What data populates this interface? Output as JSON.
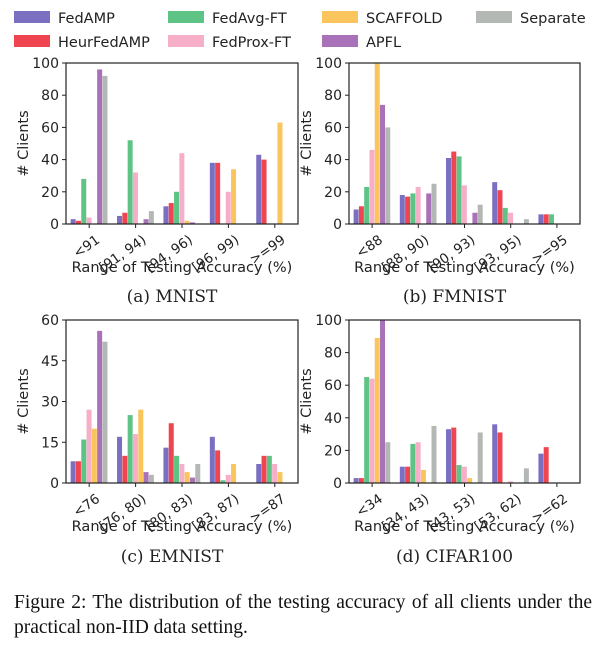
{
  "legend": [
    {
      "name": "FedAMP",
      "color": "#7a6fc1"
    },
    {
      "name": "HeurFedAMP",
      "color": "#ee4550"
    },
    {
      "name": "FedAvg-FT",
      "color": "#5ec486"
    },
    {
      "name": "FedProx-FT",
      "color": "#f7aec8"
    },
    {
      "name": "SCAFFOLD",
      "color": "#f9c55c"
    },
    {
      "name": "APFL",
      "color": "#a971b8"
    },
    {
      "name": "Separate",
      "color": "#b4b8b5"
    }
  ],
  "chart_data": [
    {
      "type": "bar",
      "title": "(a) MNIST",
      "xlabel": "Range of Testing Accuracy (%)",
      "ylabel": "# Clients",
      "categories": [
        "<91",
        "[91, 94)",
        "[94, 96)",
        "[96, 99)",
        ">=99"
      ],
      "ylim": [
        0,
        100
      ],
      "yticks": [
        0,
        20,
        40,
        60,
        80,
        100
      ],
      "series": [
        {
          "name": "FedAMP",
          "values": [
            3,
            5,
            11,
            38,
            43
          ]
        },
        {
          "name": "HeurFedAMP",
          "values": [
            2,
            7,
            13,
            38,
            40
          ]
        },
        {
          "name": "FedAvg-FT",
          "values": [
            28,
            52,
            20,
            0,
            0
          ]
        },
        {
          "name": "FedProx-FT",
          "values": [
            4,
            32,
            44,
            20,
            0
          ]
        },
        {
          "name": "SCAFFOLD",
          "values": [
            0,
            0,
            2,
            34,
            63
          ]
        },
        {
          "name": "APFL",
          "values": [
            96,
            3,
            1,
            0,
            0
          ]
        },
        {
          "name": "Separate",
          "values": [
            92,
            8,
            0,
            0,
            0
          ]
        }
      ]
    },
    {
      "type": "bar",
      "title": "(b) FMNIST",
      "xlabel": "Range of Testing Accuracy (%)",
      "ylabel": "# Clients",
      "categories": [
        "<88",
        "[88, 90)",
        "[90, 93)",
        "[93, 95)",
        ">=95"
      ],
      "ylim": [
        0,
        100
      ],
      "yticks": [
        0,
        20,
        40,
        60,
        80,
        100
      ],
      "series": [
        {
          "name": "FedAMP",
          "values": [
            9,
            18,
            41,
            26,
            6
          ]
        },
        {
          "name": "HeurFedAMP",
          "values": [
            11,
            17,
            45,
            21,
            6
          ]
        },
        {
          "name": "FedAvg-FT",
          "values": [
            23,
            19,
            42,
            10,
            6
          ]
        },
        {
          "name": "FedProx-FT",
          "values": [
            46,
            23,
            24,
            7,
            0
          ]
        },
        {
          "name": "SCAFFOLD",
          "values": [
            100,
            0,
            0,
            0,
            0
          ]
        },
        {
          "name": "APFL",
          "values": [
            74,
            19,
            7,
            0,
            0
          ]
        },
        {
          "name": "Separate",
          "values": [
            60,
            25,
            12,
            3,
            0
          ]
        }
      ]
    },
    {
      "type": "bar",
      "title": "(c) EMNIST",
      "xlabel": "Range of Testing Accuracy (%)",
      "ylabel": "# Clients",
      "categories": [
        "<76",
        "[76, 80)",
        "[80, 83)",
        "[83, 87)",
        ">=87"
      ],
      "ylim": [
        0,
        60
      ],
      "yticks": [
        0,
        15,
        30,
        45,
        60
      ],
      "series": [
        {
          "name": "FedAMP",
          "values": [
            8,
            17,
            13,
            17,
            7
          ]
        },
        {
          "name": "HeurFedAMP",
          "values": [
            8,
            10,
            22,
            12,
            10
          ]
        },
        {
          "name": "FedAvg-FT",
          "values": [
            16,
            25,
            10,
            1,
            10
          ]
        },
        {
          "name": "FedProx-FT",
          "values": [
            27,
            18,
            7,
            3,
            7
          ]
        },
        {
          "name": "SCAFFOLD",
          "values": [
            20,
            27,
            4,
            7,
            4
          ]
        },
        {
          "name": "APFL",
          "values": [
            56,
            4,
            2,
            0,
            0
          ]
        },
        {
          "name": "Separate",
          "values": [
            52,
            3,
            7,
            0,
            0
          ]
        }
      ]
    },
    {
      "type": "bar",
      "title": "(d) CIFAR100",
      "xlabel": "Range of Testing Accuracy (%)",
      "ylabel": "# Clients",
      "categories": [
        "<34",
        "[34, 43)",
        "[43, 53)",
        "[53, 62)",
        ">=62"
      ],
      "ylim": [
        0,
        100
      ],
      "yticks": [
        0,
        20,
        40,
        60,
        80,
        100
      ],
      "series": [
        {
          "name": "FedAMP",
          "values": [
            3,
            10,
            33,
            36,
            18
          ]
        },
        {
          "name": "HeurFedAMP",
          "values": [
            3,
            10,
            34,
            31,
            22
          ]
        },
        {
          "name": "FedAvg-FT",
          "values": [
            65,
            24,
            11,
            0,
            0
          ]
        },
        {
          "name": "FedProx-FT",
          "values": [
            64,
            25,
            10,
            1,
            0
          ]
        },
        {
          "name": "SCAFFOLD",
          "values": [
            89,
            8,
            3,
            0,
            0
          ]
        },
        {
          "name": "APFL",
          "values": [
            100,
            0,
            0,
            0,
            0
          ]
        },
        {
          "name": "Separate",
          "values": [
            25,
            35,
            31,
            9,
            0
          ]
        }
      ]
    }
  ],
  "caption": "Figure 2: The distribution of the testing accuracy of all clients under the practical non-IID data setting."
}
